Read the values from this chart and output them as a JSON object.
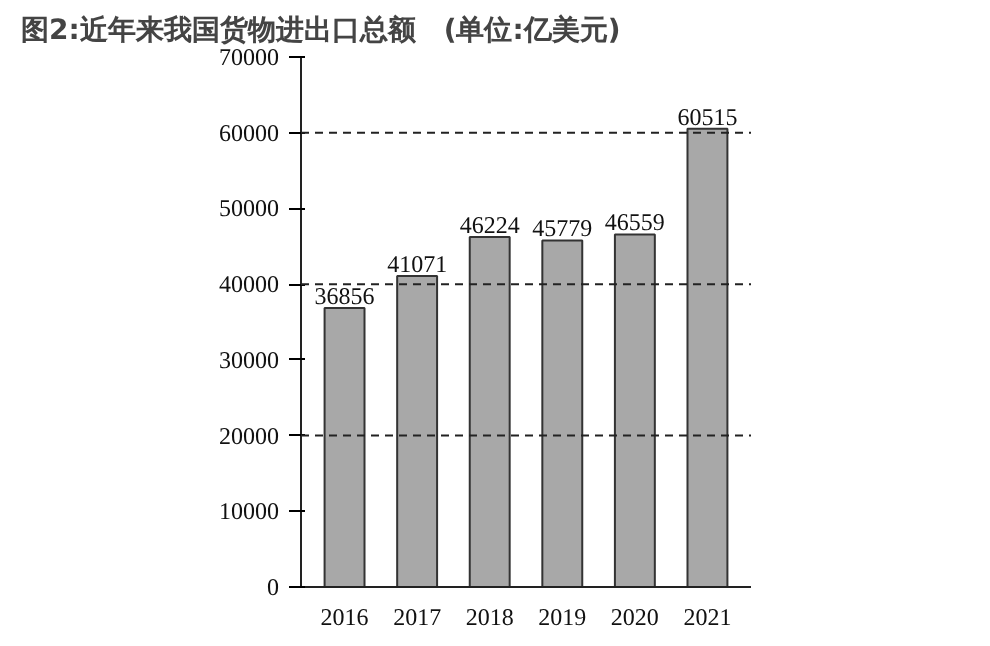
{
  "chart_data": {
    "type": "bar",
    "title": "图2:近年来我国货物进出口总额　(单位:亿美元)",
    "categories": [
      "2016",
      "2017",
      "2018",
      "2019",
      "2020",
      "2021"
    ],
    "values": [
      36856,
      41071,
      46224,
      45779,
      46559,
      60515
    ],
    "color": "#a8a8a8",
    "ylim": [
      0,
      70000
    ],
    "yticks": [
      0,
      10000,
      20000,
      30000,
      40000,
      50000,
      60000,
      70000
    ],
    "ref_lines": [
      {
        "axis": "y",
        "value": 20000,
        "line_style": "dashed"
      },
      {
        "axis": "y",
        "value": 40000,
        "line_style": "dashed"
      },
      {
        "axis": "y",
        "value": 60000,
        "line_style": "dashed"
      }
    ],
    "data_labels": true
  }
}
